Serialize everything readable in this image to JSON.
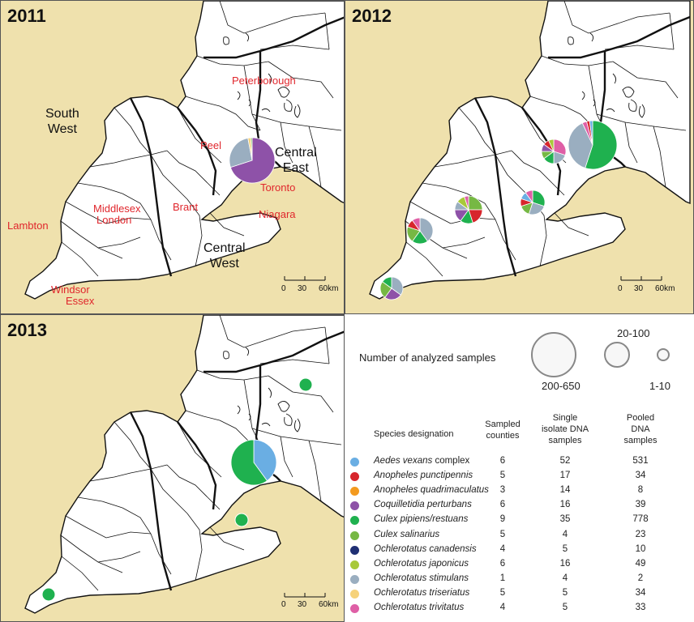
{
  "panels": {
    "p2011": {
      "year": "2011"
    },
    "p2012": {
      "year": "2012"
    },
    "p2013": {
      "year": "2013"
    }
  },
  "labels_2011": {
    "peterborough": "Peterborough",
    "peel": "Peel",
    "toronto": "Toronto",
    "brant": "Brant",
    "niagara": "Niagara",
    "middlesex": "Middlesex",
    "london": "London",
    "lambton": "Lambton",
    "windsor": "Windsor",
    "essex": "Essex",
    "south": "South",
    "west": "West",
    "central_east_1": "Central",
    "central_east_2": "East",
    "central_west_1": "Central",
    "central_west_2": "West"
  },
  "scale": {
    "zero": "0",
    "thirty": "30",
    "sixty": "60km"
  },
  "legend": {
    "title": "Number of analyzed samples",
    "sizes": {
      "large": "200-650",
      "medium": "20-100",
      "small": "1-10"
    },
    "headers": {
      "species": "Species designation",
      "counties_1": "Sampled",
      "counties_2": "counties",
      "single_1": "Single",
      "single_2": "isolate DNA",
      "single_3": "samples",
      "pooled_1": "Pooled",
      "pooled_2": "DNA",
      "pooled_3": "samples"
    },
    "rows": [
      {
        "species": "Aedes vexans",
        "suffix": " complex",
        "color": "#6aaee3",
        "counties": "6",
        "single": "52",
        "pooled": "531"
      },
      {
        "species": "Anopheles punctipennis",
        "suffix": "",
        "color": "#d7262c",
        "counties": "5",
        "single": "17",
        "pooled": "34"
      },
      {
        "species": "Anopheles quadrimaculatus",
        "suffix": "",
        "color": "#f39a1f",
        "counties": "3",
        "single": "14",
        "pooled": "8"
      },
      {
        "species": "Coquilletidia perturbans",
        "suffix": "",
        "color": "#8e52a8",
        "counties": "6",
        "single": "16",
        "pooled": "39"
      },
      {
        "species": "Culex pipiens/restuans",
        "suffix": "",
        "color": "#1fb14f",
        "counties": "9",
        "single": "35",
        "pooled": "778"
      },
      {
        "species": "Culex salinarius",
        "suffix": "",
        "color": "#76b844",
        "counties": "5",
        "single": "4",
        "pooled": "23"
      },
      {
        "species": "Ochlerotatus canadensis",
        "suffix": "",
        "color": "#1f2f73",
        "counties": "4",
        "single": "5",
        "pooled": "10"
      },
      {
        "species": "Ochlerotatus japonicus",
        "suffix": "",
        "color": "#a8c93a",
        "counties": "6",
        "single": "16",
        "pooled": "49"
      },
      {
        "species": "Ochlerotatus stimulans",
        "suffix": "",
        "color": "#9aaec0",
        "counties": "1",
        "single": "4",
        "pooled": "2"
      },
      {
        "species": "Ochlerotatus triseriatus",
        "suffix": "",
        "color": "#f6d27a",
        "counties": "5",
        "single": "5",
        "pooled": "34"
      },
      {
        "species": "Ochlerotatus trivitatus",
        "suffix": "",
        "color": "#df5fa6",
        "counties": "4",
        "single": "5",
        "pooled": "33"
      }
    ]
  },
  "pies": {
    "p2011": [
      {
        "site": "toronto",
        "slices": [
          {
            "color": "#8e52a8",
            "value": 70
          },
          {
            "color": "#9aaec0",
            "value": 27
          },
          {
            "color": "#f6d27a",
            "value": 2
          },
          {
            "color": "#76b844",
            "value": 1
          }
        ]
      }
    ],
    "p2012": [
      {
        "site": "toronto",
        "slices": [
          {
            "color": "#1fb14f",
            "value": 55
          },
          {
            "color": "#9aaec0",
            "value": 38
          },
          {
            "color": "#df5fa6",
            "value": 3
          },
          {
            "color": "#d7262c",
            "value": 2
          },
          {
            "color": "#6aaee3",
            "value": 2
          }
        ]
      },
      {
        "site": "peel",
        "slices": [
          {
            "color": "#df5fa6",
            "value": 30
          },
          {
            "color": "#9aaec0",
            "value": 20
          },
          {
            "color": "#1fb14f",
            "value": 15
          },
          {
            "color": "#76b844",
            "value": 10
          },
          {
            "color": "#8e52a8",
            "value": 10
          },
          {
            "color": "#d7262c",
            "value": 8
          },
          {
            "color": "#a8c93a",
            "value": 7
          }
        ]
      },
      {
        "site": "brant",
        "slices": [
          {
            "color": "#1fb14f",
            "value": 30
          },
          {
            "color": "#9aaec0",
            "value": 25
          },
          {
            "color": "#76b844",
            "value": 15
          },
          {
            "color": "#d7262c",
            "value": 10
          },
          {
            "color": "#6aaee3",
            "value": 10
          },
          {
            "color": "#df5fa6",
            "value": 10
          }
        ]
      },
      {
        "site": "middlesex",
        "slices": [
          {
            "color": "#76b844",
            "value": 25
          },
          {
            "color": "#d7262c",
            "value": 20
          },
          {
            "color": "#1fb14f",
            "value": 15
          },
          {
            "color": "#8e52a8",
            "value": 15
          },
          {
            "color": "#9aaec0",
            "value": 10
          },
          {
            "color": "#a8c93a",
            "value": 10
          },
          {
            "color": "#df5fa6",
            "value": 5
          }
        ]
      },
      {
        "site": "lambton",
        "slices": [
          {
            "color": "#9aaec0",
            "value": 40
          },
          {
            "color": "#1fb14f",
            "value": 20
          },
          {
            "color": "#76b844",
            "value": 20
          },
          {
            "color": "#d7262c",
            "value": 10
          },
          {
            "color": "#df5fa6",
            "value": 10
          }
        ]
      },
      {
        "site": "windsor",
        "slices": [
          {
            "color": "#9aaec0",
            "value": 35
          },
          {
            "color": "#8e52a8",
            "value": 25
          },
          {
            "color": "#76b844",
            "value": 25
          },
          {
            "color": "#1fb14f",
            "value": 15
          }
        ]
      }
    ],
    "p2013": [
      {
        "site": "toronto",
        "slices": [
          {
            "color": "#6aaee3",
            "value": 40
          },
          {
            "color": "#1fb14f",
            "value": 60
          }
        ]
      },
      {
        "site": "peterborough",
        "slices": [
          {
            "color": "#1fb14f",
            "value": 100
          }
        ]
      },
      {
        "site": "niagara",
        "slices": [
          {
            "color": "#1fb14f",
            "value": 100
          }
        ]
      },
      {
        "site": "windsor",
        "slices": [
          {
            "color": "#1fb14f",
            "value": 100
          }
        ]
      }
    ]
  }
}
